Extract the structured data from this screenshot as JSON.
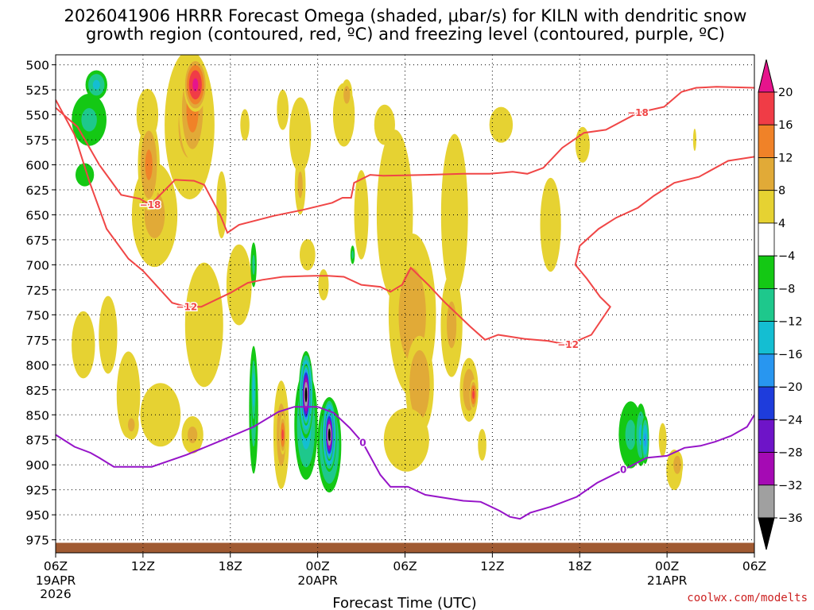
{
  "title": {
    "line1": "2026041906 HRRR Forecast Omega (shaded, μbar/s) for KILN with dendritic snow",
    "line2": "growth region (contoured, red, ºC) and freezing level (contoured, purple, ºC)"
  },
  "credit": "coolwx.com/modelts",
  "chart_data": {
    "type": "heatmap",
    "title": "2026041906 HRRR Forecast Omega (shaded, μbar/s) for KILN with dendritic snow growth region (contoured, red, ºC) and freezing level (contoured, purple, ºC)",
    "xlabel": "Forecast Time (UTC)",
    "ylabel": "",
    "x_ticks": [
      {
        "h": 0,
        "label": "06Z",
        "sub": [
          "19APR",
          "2026"
        ]
      },
      {
        "h": 6,
        "label": "12Z"
      },
      {
        "h": 12,
        "label": "18Z"
      },
      {
        "h": 18,
        "label": "00Z",
        "sub": [
          "20APR"
        ]
      },
      {
        "h": 24,
        "label": "06Z"
      },
      {
        "h": 30,
        "label": "12Z"
      },
      {
        "h": 36,
        "label": "18Z"
      },
      {
        "h": 42,
        "label": "00Z",
        "sub": [
          "21APR"
        ]
      },
      {
        "h": 48,
        "label": "06Z"
      }
    ],
    "xlim": [
      0,
      48
    ],
    "y_ticks": [
      500,
      525,
      550,
      575,
      600,
      625,
      650,
      675,
      700,
      725,
      750,
      775,
      800,
      825,
      850,
      875,
      900,
      925,
      950,
      975
    ],
    "ylim": [
      490,
      988
    ],
    "y_reversed": true,
    "grid": true,
    "colorbar": {
      "labels": [
        "20",
        "16",
        "12",
        "8",
        "4",
        "−4",
        "−8",
        "−12",
        "−16",
        "−20",
        "−24",
        "−28",
        "−32",
        "−36"
      ],
      "bins": [
        {
          "range": "16 to 20",
          "color": "#f03c46"
        },
        {
          "range": "12 to 16",
          "color": "#f08228"
        },
        {
          "range": "8 to 12",
          "color": "#e1aa37"
        },
        {
          "range": "4 to 8",
          "color": "#e6d232"
        },
        {
          "range": "-4 to 4",
          "color": "#ffffff"
        },
        {
          "range": "-8 to -4",
          "color": "#14c814"
        },
        {
          "range": "-12 to -8",
          "color": "#1ec88c"
        },
        {
          "range": "-16 to -12",
          "color": "#14bed2"
        },
        {
          "range": "-20 to -16",
          "color": "#2896f0"
        },
        {
          "range": "-24 to -20",
          "color": "#1e3cdc"
        },
        {
          "range": "-28 to -24",
          "color": "#6e14c8"
        },
        {
          "range": "-32 to -28",
          "color": "#a50ab4"
        },
        {
          "range": "-36 to -32",
          "color": "#a0a0a0"
        }
      ],
      "over_color": "#e6148c",
      "under_color": "#000000"
    },
    "omega_features": [
      {
        "h": 2.3,
        "p": 555,
        "w": 1.6,
        "hp": 70,
        "v": -9
      },
      {
        "h": 2.0,
        "p": 610,
        "w": 1.1,
        "hp": 40,
        "v": -6
      },
      {
        "h": 2.8,
        "p": 520,
        "w": 0.9,
        "hp": 35,
        "v": -13
      },
      {
        "h": 1.9,
        "p": 780,
        "w": 1.8,
        "hp": 150,
        "v": 5
      },
      {
        "h": 3.6,
        "p": 770,
        "w": 0.9,
        "hp": 110,
        "v": 8
      },
      {
        "h": 5.0,
        "p": 830,
        "w": 1.4,
        "hp": 150,
        "v": 6
      },
      {
        "h": 5.2,
        "p": 860,
        "w": 0.7,
        "hp": 40,
        "v": 9
      },
      {
        "h": 6.3,
        "p": 550,
        "w": 1.3,
        "hp": 90,
        "v": 6
      },
      {
        "h": 6.8,
        "p": 650,
        "w": 2.1,
        "hp": 140,
        "v": 9
      },
      {
        "h": 6.4,
        "p": 600,
        "w": 0.9,
        "hp": 110,
        "v": 13
      },
      {
        "h": 7.2,
        "p": 850,
        "w": 2.4,
        "hp": 110,
        "v": 6
      },
      {
        "h": 9.2,
        "p": 560,
        "w": 2.3,
        "hp": 200,
        "v": 9
      },
      {
        "h": 9.4,
        "p": 545,
        "w": 1.1,
        "hp": 120,
        "v": 14
      },
      {
        "h": 9.6,
        "p": 520,
        "w": 0.9,
        "hp": 60,
        "v": 21
      },
      {
        "h": 10.2,
        "p": 760,
        "w": 2.0,
        "hp": 190,
        "v": 7
      },
      {
        "h": 9.4,
        "p": 870,
        "w": 1.0,
        "hp": 50,
        "v": 9
      },
      {
        "h": 11.4,
        "p": 640,
        "w": 0.8,
        "hp": 150,
        "v": 5
      },
      {
        "h": 12.6,
        "p": 720,
        "w": 1.5,
        "hp": 140,
        "v": 6
      },
      {
        "h": 13.0,
        "p": 560,
        "w": 0.7,
        "hp": 70,
        "v": 5
      },
      {
        "h": 13.6,
        "p": 845,
        "w": 0.4,
        "hp": 165,
        "v": -10
      },
      {
        "h": 13.6,
        "p": 825,
        "w": 0.22,
        "hp": 90,
        "v": -14
      },
      {
        "h": 13.6,
        "p": 700,
        "w": 0.28,
        "hp": 60,
        "v": -9
      },
      {
        "h": 15.5,
        "p": 870,
        "w": 0.7,
        "hp": 140,
        "v": 10
      },
      {
        "h": 15.6,
        "p": 870,
        "w": 0.25,
        "hp": 45,
        "v": 17
      },
      {
        "h": 15.6,
        "p": 545,
        "w": 0.9,
        "hp": 90,
        "v": 5
      },
      {
        "h": 17.2,
        "p": 860,
        "w": 0.95,
        "hp": 130,
        "v": -14
      },
      {
        "h": 17.2,
        "p": 830,
        "w": 0.55,
        "hp": 95,
        "v": -26
      },
      {
        "h": 17.2,
        "p": 830,
        "w": 0.33,
        "hp": 65,
        "v": -38
      },
      {
        "h": 17.3,
        "p": 690,
        "w": 1.2,
        "hp": 70,
        "v": 5
      },
      {
        "h": 18.8,
        "p": 880,
        "w": 0.95,
        "hp": 110,
        "v": -16
      },
      {
        "h": 18.8,
        "p": 870,
        "w": 0.55,
        "hp": 80,
        "v": -29
      },
      {
        "h": 18.8,
        "p": 870,
        "w": 0.33,
        "hp": 55,
        "v": -38
      },
      {
        "h": 18.4,
        "p": 720,
        "w": 0.8,
        "hp": 70,
        "v": 5
      },
      {
        "h": 16.8,
        "p": 570,
        "w": 1.3,
        "hp": 130,
        "v": 6
      },
      {
        "h": 16.8,
        "p": 620,
        "w": 0.5,
        "hp": 80,
        "v": 9
      },
      {
        "h": 19.8,
        "p": 550,
        "w": 1.3,
        "hp": 110,
        "v": 6
      },
      {
        "h": 20.0,
        "p": 530,
        "w": 0.5,
        "hp": 40,
        "v": 10
      },
      {
        "h": 20.4,
        "p": 690,
        "w": 0.2,
        "hp": 25,
        "v": -9
      },
      {
        "h": 21.0,
        "p": 650,
        "w": 1.1,
        "hp": 200,
        "v": 5
      },
      {
        "h": 23.3,
        "p": 650,
        "w": 1.9,
        "hp": 260,
        "v": 7
      },
      {
        "h": 24.5,
        "p": 750,
        "w": 2.1,
        "hp": 210,
        "v": 10
      },
      {
        "h": 25.0,
        "p": 820,
        "w": 1.2,
        "hp": 120,
        "v": 12
      },
      {
        "h": 24.1,
        "p": 875,
        "w": 2.7,
        "hp": 110,
        "v": 6
      },
      {
        "h": 22.6,
        "p": 560,
        "w": 1.6,
        "hp": 90,
        "v": 5
      },
      {
        "h": 27.4,
        "p": 650,
        "w": 1.6,
        "hp": 280,
        "v": 6
      },
      {
        "h": 27.2,
        "p": 760,
        "w": 1.0,
        "hp": 140,
        "v": 9
      },
      {
        "h": 28.4,
        "p": 825,
        "w": 0.8,
        "hp": 80,
        "v": 11
      },
      {
        "h": 28.7,
        "p": 830,
        "w": 0.3,
        "hp": 35,
        "v": 17
      },
      {
        "h": 29.3,
        "p": 880,
        "w": 0.5,
        "hp": 55,
        "v": 6
      },
      {
        "h": 30.6,
        "p": 560,
        "w": 1.8,
        "hp": 80,
        "v": 5
      },
      {
        "h": 34.0,
        "p": 660,
        "w": 1.6,
        "hp": 210,
        "v": 5
      },
      {
        "h": 36.2,
        "p": 580,
        "w": 1.1,
        "hp": 80,
        "v": 5
      },
      {
        "h": 41.7,
        "p": 875,
        "w": 0.6,
        "hp": 75,
        "v": 5
      },
      {
        "h": 43.9,
        "p": 575,
        "w": 0.25,
        "hp": 50,
        "v": 5
      },
      {
        "h": 39.5,
        "p": 870,
        "w": 1.1,
        "hp": 90,
        "v": -9
      },
      {
        "h": 40.2,
        "p": 870,
        "w": 0.5,
        "hp": 75,
        "v": -13
      },
      {
        "h": 40.5,
        "p": 875,
        "w": 0.3,
        "hp": 55,
        "v": -17
      },
      {
        "h": 42.5,
        "p": 905,
        "w": 0.95,
        "hp": 70,
        "v": 6
      },
      {
        "h": 42.7,
        "p": 900,
        "w": 0.5,
        "hp": 35,
        "v": 11
      }
    ],
    "contours": {
      "dgz_upper": {
        "label": "−18",
        "color": "#f04646",
        "points": [
          [
            0,
            543
          ],
          [
            1.5,
            562
          ],
          [
            3,
            600
          ],
          [
            4.5,
            630
          ],
          [
            5.8,
            634
          ],
          [
            6.5,
            640
          ],
          [
            8.2,
            615
          ],
          [
            9.5,
            616
          ],
          [
            10.2,
            620
          ],
          [
            11.3,
            650
          ],
          [
            11.8,
            668
          ],
          [
            12.6,
            660
          ],
          [
            15.0,
            651
          ],
          [
            17.0,
            645
          ],
          [
            19.0,
            638
          ],
          [
            19.7,
            633
          ],
          [
            20.3,
            633
          ],
          [
            20.5,
            618
          ],
          [
            21.6,
            610
          ],
          [
            22.5,
            611
          ],
          [
            25.5,
            610
          ],
          [
            28.0,
            609
          ],
          [
            29.8,
            609
          ],
          [
            31.4,
            607
          ],
          [
            32.4,
            609
          ],
          [
            33.5,
            603
          ],
          [
            34.8,
            583
          ],
          [
            36.3,
            568
          ],
          [
            37.8,
            565
          ],
          [
            40.0,
            548
          ],
          [
            41.8,
            542
          ],
          [
            43.0,
            527
          ],
          [
            44.0,
            523
          ],
          [
            45.4,
            522
          ],
          [
            48.0,
            523
          ]
        ]
      },
      "dgz_lower": {
        "label": "−12",
        "color": "#f04646",
        "points": [
          [
            0,
            535
          ],
          [
            1.3,
            570
          ],
          [
            2.3,
            616
          ],
          [
            3.5,
            664
          ],
          [
            5.0,
            694
          ],
          [
            6.0,
            706
          ],
          [
            8.0,
            738
          ],
          [
            9.0,
            742
          ],
          [
            10.0,
            742
          ],
          [
            12.0,
            728
          ],
          [
            13.2,
            718
          ],
          [
            14.2,
            715
          ],
          [
            15.6,
            712
          ],
          [
            17.8,
            711
          ],
          [
            18.7,
            711
          ],
          [
            19.8,
            712
          ],
          [
            21.0,
            720
          ],
          [
            22.3,
            722
          ],
          [
            23.0,
            727
          ],
          [
            23.8,
            720
          ],
          [
            24.4,
            703
          ],
          [
            25.6,
            720
          ],
          [
            26.7,
            737
          ],
          [
            28.5,
            762
          ],
          [
            29.5,
            775
          ],
          [
            30.4,
            770
          ],
          [
            32.2,
            774
          ],
          [
            33.8,
            776
          ],
          [
            35.2,
            780
          ],
          [
            36.8,
            770
          ],
          [
            38.1,
            742
          ],
          [
            37.4,
            732
          ],
          [
            36.5,
            714
          ],
          [
            35.7,
            700
          ],
          [
            36.0,
            681
          ],
          [
            37.3,
            664
          ],
          [
            38.5,
            653
          ],
          [
            40.0,
            643
          ],
          [
            41.1,
            631
          ],
          [
            42.5,
            618
          ],
          [
            44.2,
            612
          ],
          [
            46.2,
            596
          ],
          [
            48.0,
            592
          ]
        ]
      },
      "freezing": {
        "label": "0",
        "color": "#9614c8",
        "points": [
          [
            0,
            870
          ],
          [
            1.3,
            882
          ],
          [
            2.4,
            888
          ],
          [
            3.0,
            893
          ],
          [
            4.0,
            902
          ],
          [
            5.4,
            902
          ],
          [
            6.6,
            902
          ],
          [
            9.0,
            890
          ],
          [
            11.5,
            875
          ],
          [
            13.6,
            862
          ],
          [
            15.3,
            847
          ],
          [
            16.4,
            842
          ],
          [
            18.0,
            842
          ],
          [
            19.1,
            848
          ],
          [
            20.2,
            863
          ],
          [
            21.1,
            878
          ],
          [
            22.3,
            910
          ],
          [
            23.0,
            922
          ],
          [
            24.2,
            922
          ],
          [
            25.4,
            930
          ],
          [
            28.0,
            936
          ],
          [
            29.2,
            937
          ],
          [
            30.5,
            946
          ],
          [
            31.2,
            952
          ],
          [
            31.9,
            954
          ],
          [
            32.6,
            948
          ],
          [
            34.0,
            942
          ],
          [
            35.8,
            932
          ],
          [
            37.2,
            918
          ],
          [
            39.0,
            905
          ],
          [
            40.6,
            893
          ],
          [
            42.0,
            891
          ],
          [
            43.2,
            883
          ],
          [
            44.3,
            881
          ],
          [
            45.3,
            877
          ],
          [
            46.4,
            871
          ],
          [
            47.5,
            862
          ],
          [
            48.0,
            850
          ]
        ]
      }
    },
    "terrain_color": "#a05a32",
    "terrain_top": 978
  }
}
